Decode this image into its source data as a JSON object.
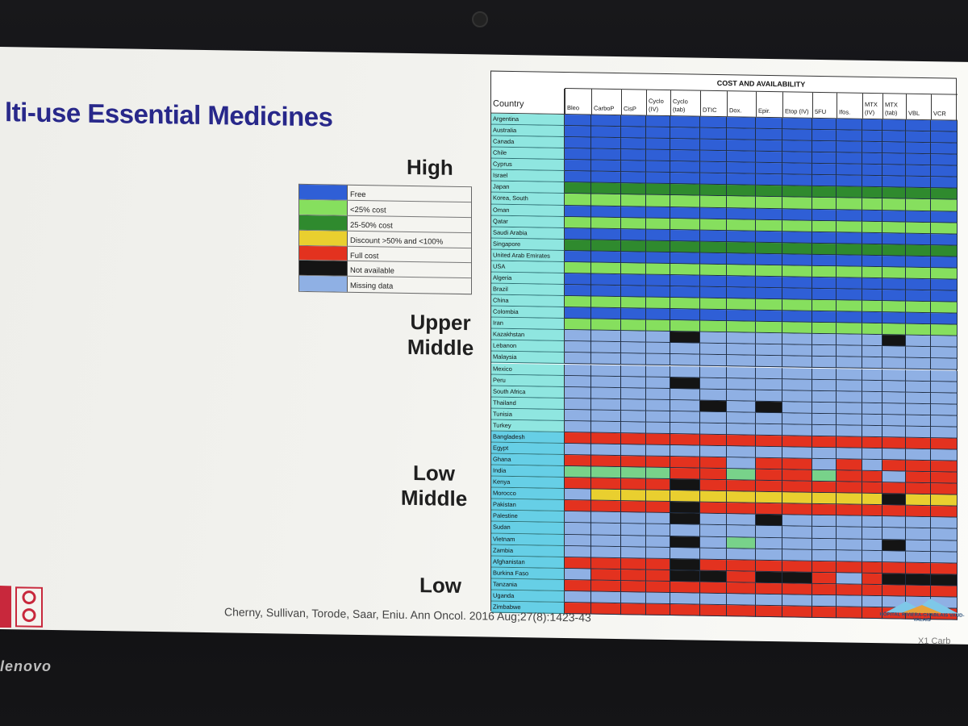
{
  "slide": {
    "title": "lti-use Essential Medicines",
    "citation": "Cherny, Sullivan, Torode, Saar, Eniu. Ann Oncol. 2016 Aug;27(8):1423-43",
    "hospital": "HÔPITAL RIVIERA-CHABLAIS VAUD-VALAIS",
    "tiers": [
      {
        "label": "High"
      },
      {
        "label": "Upper Middle"
      },
      {
        "label": "Low Middle"
      },
      {
        "label": "Low"
      }
    ]
  },
  "colors": {
    "free": "#2f5fd6",
    "lt25": "#86df5e",
    "c25_50": "#2f8a2e",
    "discount": "#e9cf2f",
    "full": "#e3321f",
    "na": "#141414",
    "missing": "#8fb0e4",
    "soft_green": "#78d28a",
    "country_bg": "#8fe6e0",
    "country_bg_low": "#66cfe6"
  },
  "legend": [
    {
      "key": "free",
      "label": "Free"
    },
    {
      "key": "lt25",
      "label": "<25% cost"
    },
    {
      "key": "c25_50",
      "label": "25-50% cost"
    },
    {
      "key": "discount",
      "label": "Discount >50% and <100%"
    },
    {
      "key": "full",
      "label": "Full cost"
    },
    {
      "key": "na",
      "label": "Not available"
    },
    {
      "key": "missing",
      "label": "Missing data"
    }
  ],
  "table": {
    "title": "COST AND AVAILABILITY",
    "country_header": "Country",
    "columns": [
      "Bleo",
      "CarboP",
      "CisP",
      "Cyclo (IV)",
      "Cyclo (tab)",
      "DTIC",
      "Dox.",
      "Epir.",
      "Etop (IV)",
      "5FU",
      "Ifos.",
      "MTX (IV)",
      "MTX (tab)",
      "VBL",
      "VCR"
    ],
    "rows": [
      {
        "country": "Argentina",
        "tier": "high",
        "cells": [
          "F",
          "F",
          "F",
          "F",
          "F",
          "F",
          "F",
          "F",
          "F",
          "F",
          "F",
          "F",
          "F",
          "F",
          "F"
        ]
      },
      {
        "country": "Australia",
        "tier": "high",
        "cells": [
          "F",
          "F",
          "F",
          "F",
          "F",
          "F",
          "F",
          "F",
          "F",
          "F",
          "F",
          "F",
          "F",
          "F",
          "F"
        ]
      },
      {
        "country": "Canada",
        "tier": "high",
        "cells": [
          "F",
          "F",
          "F",
          "F",
          "F",
          "F",
          "F",
          "F",
          "F",
          "F",
          "F",
          "F",
          "F",
          "F",
          "F"
        ]
      },
      {
        "country": "Chile",
        "tier": "high",
        "cells": [
          "F",
          "F",
          "F",
          "F",
          "F",
          "F",
          "F",
          "F",
          "F",
          "F",
          "F",
          "F",
          "F",
          "F",
          "F"
        ]
      },
      {
        "country": "Cyprus",
        "tier": "high",
        "cells": [
          "F",
          "F",
          "F",
          "F",
          "F",
          "F",
          "F",
          "F",
          "F",
          "F",
          "F",
          "F",
          "F",
          "F",
          "F"
        ]
      },
      {
        "country": "Israel",
        "tier": "high",
        "cells": [
          "F",
          "F",
          "F",
          "F",
          "F",
          "F",
          "F",
          "F",
          "F",
          "F",
          "F",
          "F",
          "F",
          "F",
          "F"
        ]
      },
      {
        "country": "Japan",
        "tier": "high",
        "cells": [
          "G",
          "G",
          "G",
          "G",
          "G",
          "G",
          "G",
          "G",
          "G",
          "G",
          "G",
          "G",
          "G",
          "G",
          "G"
        ]
      },
      {
        "country": "Korea, South",
        "tier": "high",
        "cells": [
          "L",
          "L",
          "L",
          "L",
          "L",
          "L",
          "L",
          "L",
          "L",
          "L",
          "L",
          "L",
          "L",
          "L",
          "L"
        ]
      },
      {
        "country": "Oman",
        "tier": "high",
        "cells": [
          "F",
          "F",
          "F",
          "F",
          "F",
          "F",
          "F",
          "F",
          "F",
          "F",
          "F",
          "F",
          "F",
          "F",
          "F"
        ]
      },
      {
        "country": "Qatar",
        "tier": "high",
        "cells": [
          "L",
          "L",
          "L",
          "L",
          "L",
          "L",
          "L",
          "L",
          "L",
          "L",
          "L",
          "L",
          "L",
          "L",
          "L"
        ]
      },
      {
        "country": "Saudi Arabia",
        "tier": "high",
        "cells": [
          "F",
          "F",
          "F",
          "F",
          "F",
          "F",
          "F",
          "F",
          "F",
          "F",
          "F",
          "F",
          "F",
          "F",
          "F"
        ]
      },
      {
        "country": "Singapore",
        "tier": "high",
        "cells": [
          "G",
          "G",
          "G",
          "G",
          "G",
          "G",
          "G",
          "G",
          "G",
          "G",
          "G",
          "G",
          "G",
          "G",
          "G"
        ]
      },
      {
        "country": "United Arab Emirates",
        "tier": "high",
        "cells": [
          "F",
          "F",
          "F",
          "F",
          "F",
          "F",
          "F",
          "F",
          "F",
          "F",
          "F",
          "F",
          "F",
          "F",
          "F"
        ]
      },
      {
        "country": "USA",
        "tier": "high",
        "cells": [
          "L",
          "L",
          "L",
          "L",
          "L",
          "L",
          "L",
          "L",
          "L",
          "L",
          "L",
          "L",
          "L",
          "L",
          "L"
        ]
      },
      {
        "country": "Algeria",
        "tier": "um",
        "cells": [
          "F",
          "F",
          "F",
          "F",
          "F",
          "F",
          "F",
          "F",
          "F",
          "F",
          "F",
          "F",
          "F",
          "F",
          "F"
        ]
      },
      {
        "country": "Brazil",
        "tier": "um",
        "cells": [
          "F",
          "F",
          "F",
          "F",
          "F",
          "F",
          "F",
          "F",
          "F",
          "F",
          "F",
          "F",
          "F",
          "F",
          "F"
        ]
      },
      {
        "country": "China",
        "tier": "um",
        "cells": [
          "L",
          "L",
          "L",
          "L",
          "L",
          "L",
          "L",
          "L",
          "L",
          "L",
          "L",
          "L",
          "L",
          "L",
          "L"
        ]
      },
      {
        "country": "Colombia",
        "tier": "um",
        "cells": [
          "F",
          "F",
          "F",
          "F",
          "F",
          "F",
          "F",
          "F",
          "F",
          "F",
          "F",
          "F",
          "F",
          "F",
          "F"
        ]
      },
      {
        "country": "Iran",
        "tier": "um",
        "cells": [
          "L",
          "L",
          "L",
          "L",
          "L",
          "L",
          "L",
          "L",
          "L",
          "L",
          "L",
          "L",
          "L",
          "L",
          "L"
        ]
      },
      {
        "country": "Kazakhstan",
        "tier": "um",
        "cells": [
          "M",
          "M",
          "M",
          "M",
          "N",
          "M",
          "M",
          "M",
          "M",
          "M",
          "M",
          "M",
          "N",
          "M",
          "M"
        ]
      },
      {
        "country": "Lebanon",
        "tier": "um",
        "cells": [
          "M",
          "M",
          "M",
          "M",
          "M",
          "M",
          "M",
          "M",
          "M",
          "M",
          "M",
          "M",
          "M",
          "M",
          "M"
        ]
      },
      {
        "country": "Malaysia",
        "tier": "um",
        "cells": [
          "M",
          "M",
          "M",
          "M",
          "M",
          "M",
          "M",
          "M",
          "M",
          "M",
          "M",
          "M",
          "M",
          "M",
          "M"
        ]
      },
      {
        "country": "Mexico",
        "tier": "um",
        "cells": [
          "M",
          "M",
          "M",
          "M",
          "M",
          "M",
          "M",
          "M",
          "M",
          "M",
          "M",
          "M",
          "M",
          "M",
          "M"
        ]
      },
      {
        "country": "Peru",
        "tier": "um",
        "cells": [
          "M",
          "M",
          "M",
          "M",
          "N",
          "M",
          "M",
          "M",
          "M",
          "M",
          "M",
          "M",
          "M",
          "M",
          "M"
        ]
      },
      {
        "country": "South Africa",
        "tier": "um",
        "cells": [
          "M",
          "M",
          "M",
          "M",
          "M",
          "M",
          "M",
          "M",
          "M",
          "M",
          "M",
          "M",
          "M",
          "M",
          "M"
        ]
      },
      {
        "country": "Thailand",
        "tier": "um",
        "cells": [
          "M",
          "M",
          "M",
          "M",
          "M",
          "N",
          "M",
          "N",
          "M",
          "M",
          "M",
          "M",
          "M",
          "M",
          "M"
        ]
      },
      {
        "country": "Tunisia",
        "tier": "um",
        "cells": [
          "M",
          "M",
          "M",
          "M",
          "M",
          "M",
          "M",
          "M",
          "M",
          "M",
          "M",
          "M",
          "M",
          "M",
          "M"
        ]
      },
      {
        "country": "Turkey",
        "tier": "um",
        "cells": [
          "M",
          "M",
          "M",
          "M",
          "M",
          "M",
          "M",
          "M",
          "M",
          "M",
          "M",
          "M",
          "M",
          "M",
          "M"
        ]
      },
      {
        "country": "Bangladesh",
        "tier": "lm",
        "cells": [
          "R",
          "R",
          "R",
          "R",
          "R",
          "R",
          "R",
          "R",
          "R",
          "R",
          "R",
          "R",
          "R",
          "R",
          "R"
        ]
      },
      {
        "country": "Egypt",
        "tier": "lm",
        "cells": [
          "M",
          "M",
          "M",
          "M",
          "M",
          "M",
          "M",
          "M",
          "M",
          "M",
          "M",
          "M",
          "M",
          "M",
          "M"
        ]
      },
      {
        "country": "Ghana",
        "tier": "lm",
        "cells": [
          "R",
          "R",
          "R",
          "R",
          "R",
          "R",
          "M",
          "R",
          "R",
          "M",
          "R",
          "M",
          "R",
          "R",
          "R"
        ]
      },
      {
        "country": "India",
        "tier": "lm",
        "cells": [
          "S",
          "S",
          "S",
          "S",
          "R",
          "R",
          "S",
          "R",
          "R",
          "S",
          "R",
          "R",
          "M",
          "R",
          "R"
        ]
      },
      {
        "country": "Kenya",
        "tier": "lm",
        "cells": [
          "R",
          "R",
          "R",
          "R",
          "N",
          "R",
          "R",
          "R",
          "R",
          "R",
          "R",
          "R",
          "R",
          "R",
          "R"
        ]
      },
      {
        "country": "Morocco",
        "tier": "lm",
        "cells": [
          "M",
          "D",
          "D",
          "D",
          "D",
          "D",
          "D",
          "D",
          "D",
          "D",
          "D",
          "D",
          "N",
          "D",
          "D"
        ]
      },
      {
        "country": "Pakistan",
        "tier": "lm",
        "cells": [
          "R",
          "R",
          "R",
          "R",
          "N",
          "R",
          "R",
          "R",
          "R",
          "R",
          "R",
          "R",
          "R",
          "R",
          "R"
        ]
      },
      {
        "country": "Palestine",
        "tier": "lm",
        "cells": [
          "M",
          "M",
          "M",
          "M",
          "N",
          "M",
          "M",
          "N",
          "M",
          "M",
          "M",
          "M",
          "M",
          "M",
          "M"
        ]
      },
      {
        "country": "Sudan",
        "tier": "lm",
        "cells": [
          "M",
          "M",
          "M",
          "M",
          "M",
          "M",
          "M",
          "M",
          "M",
          "M",
          "M",
          "M",
          "M",
          "M",
          "M"
        ]
      },
      {
        "country": "Vietnam",
        "tier": "lm",
        "cells": [
          "M",
          "M",
          "M",
          "M",
          "N",
          "M",
          "S",
          "M",
          "M",
          "M",
          "M",
          "M",
          "N",
          "M",
          "M"
        ]
      },
      {
        "country": "Zambia",
        "tier": "lm",
        "cells": [
          "M",
          "M",
          "M",
          "M",
          "M",
          "M",
          "M",
          "M",
          "M",
          "M",
          "M",
          "M",
          "M",
          "M",
          "M"
        ]
      },
      {
        "country": "Afghanistan",
        "tier": "low",
        "cells": [
          "R",
          "R",
          "R",
          "R",
          "N",
          "R",
          "R",
          "R",
          "R",
          "R",
          "R",
          "R",
          "R",
          "R",
          "R"
        ]
      },
      {
        "country": "Burkina Faso",
        "tier": "low",
        "cells": [
          "M",
          "R",
          "R",
          "R",
          "N",
          "N",
          "R",
          "N",
          "N",
          "R",
          "M",
          "R",
          "N",
          "N",
          "N"
        ]
      },
      {
        "country": "Tanzania",
        "tier": "low",
        "cells": [
          "R",
          "R",
          "R",
          "R",
          "R",
          "R",
          "R",
          "R",
          "R",
          "R",
          "R",
          "R",
          "R",
          "R",
          "R"
        ]
      },
      {
        "country": "Uganda",
        "tier": "low",
        "cells": [
          "M",
          "M",
          "M",
          "M",
          "M",
          "M",
          "M",
          "M",
          "M",
          "M",
          "M",
          "M",
          "M",
          "M",
          "M"
        ]
      },
      {
        "country": "Zimbabwe",
        "tier": "low",
        "cells": [
          "R",
          "R",
          "R",
          "R",
          "R",
          "R",
          "R",
          "R",
          "R",
          "R",
          "R",
          "R",
          "R",
          "R",
          "R"
        ]
      }
    ]
  },
  "device": {
    "brand": "lenovo",
    "model": "X1 Carb"
  }
}
